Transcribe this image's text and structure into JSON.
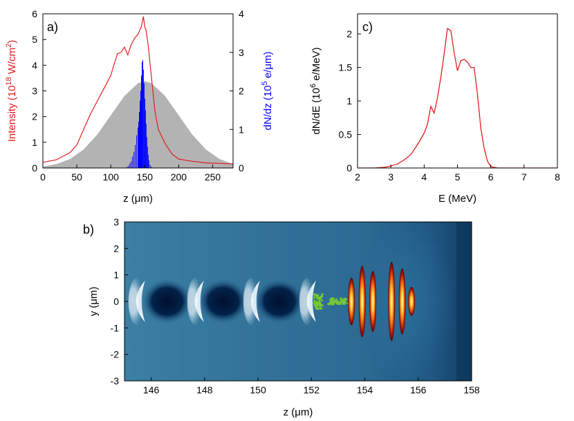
{
  "chart_data": [
    {
      "panel_label": "a)",
      "type": "line",
      "xlabel": "z (μm)",
      "ylabel_left": "Intensity (10^18 W/cm^2)",
      "ylabel_right": "dN/dz (10^5 e/μm)",
      "xlim": [
        0,
        280
      ],
      "ylim_left": [
        0,
        6
      ],
      "ylim_right": [
        0,
        4
      ],
      "xticks": [
        "0",
        "50",
        "100",
        "150",
        "200",
        "250"
      ],
      "yticks_left": [
        "0",
        "1",
        "2",
        "3",
        "4",
        "5",
        "6"
      ],
      "yticks_right": [
        "0",
        "1",
        "2",
        "3",
        "4"
      ],
      "colors": {
        "intensity": "#e31a1c",
        "gaussian_fill": "#b3b3b3",
        "dNdz": "#0000ff"
      },
      "series": [
        {
          "role": "intensity",
          "axis": "left",
          "style": "line",
          "x": [
            0,
            20,
            40,
            50,
            60,
            70,
            80,
            90,
            100,
            105,
            110,
            115,
            120,
            125,
            130,
            135,
            140,
            145,
            148,
            150,
            152,
            155,
            160,
            165,
            170,
            180,
            190,
            200,
            210,
            220,
            240,
            260,
            280
          ],
          "y": [
            0.22,
            0.32,
            0.6,
            0.9,
            1.5,
            2.1,
            2.6,
            3.1,
            3.6,
            4.05,
            4.45,
            4.5,
            4.7,
            4.4,
            4.8,
            5.05,
            5.2,
            5.5,
            5.9,
            5.5,
            5.35,
            4.8,
            3.5,
            2.2,
            1.5,
            0.95,
            0.55,
            0.35,
            0.3,
            0.26,
            0.2,
            0.18,
            0.16
          ]
        },
        {
          "role": "gaussian_envelope",
          "axis": "left",
          "style": "area",
          "x": [
            0,
            20,
            40,
            60,
            80,
            100,
            120,
            140,
            150,
            160,
            180,
            200,
            220,
            240,
            260,
            280
          ],
          "y": [
            0.05,
            0.15,
            0.35,
            0.72,
            1.3,
            2.05,
            2.8,
            3.3,
            3.38,
            3.3,
            2.8,
            2.05,
            1.3,
            0.72,
            0.35,
            0.15
          ]
        },
        {
          "role": "dNdz",
          "axis": "right",
          "style": "bars",
          "x": [
            124,
            126,
            128,
            130,
            132,
            134,
            136,
            138,
            140,
            141,
            142,
            143,
            144,
            145,
            146,
            147,
            148,
            149,
            150,
            151,
            152,
            153,
            154,
            155,
            156,
            158,
            160
          ],
          "y": [
            0.03,
            0.06,
            0.12,
            0.18,
            0.3,
            0.42,
            0.6,
            0.85,
            1.05,
            1.2,
            1.45,
            1.75,
            2.0,
            2.4,
            2.75,
            2.8,
            2.55,
            2.2,
            1.8,
            1.5,
            1.15,
            0.8,
            0.55,
            0.35,
            0.2,
            0.08,
            0.03
          ]
        }
      ]
    },
    {
      "panel_label": "c)",
      "type": "line",
      "xlabel": "E (MeV)",
      "ylabel": "dN/dE (10^6 e/MeV)",
      "xlim": [
        2,
        8
      ],
      "ylim": [
        0,
        2.3
      ],
      "xticks": [
        "2",
        "3",
        "4",
        "5",
        "6",
        "7",
        "8"
      ],
      "yticks": [
        "0",
        "0.5",
        "1",
        "1.5",
        "2"
      ],
      "series": [
        {
          "style": "line",
          "color": "#e31a1c",
          "x": [
            2.0,
            2.5,
            2.8,
            3.0,
            3.2,
            3.4,
            3.6,
            3.8,
            4.0,
            4.1,
            4.2,
            4.3,
            4.4,
            4.5,
            4.6,
            4.7,
            4.8,
            4.9,
            5.0,
            5.1,
            5.2,
            5.3,
            5.4,
            5.5,
            5.6,
            5.7,
            5.8,
            5.9,
            6.0,
            6.2,
            6.5,
            7.0,
            8.0
          ],
          "y": [
            0.0,
            0.0,
            0.01,
            0.03,
            0.06,
            0.12,
            0.2,
            0.35,
            0.52,
            0.65,
            0.92,
            0.82,
            1.05,
            1.35,
            1.7,
            2.08,
            2.05,
            1.72,
            1.45,
            1.6,
            1.62,
            1.58,
            1.5,
            1.5,
            1.1,
            0.6,
            0.3,
            0.1,
            0.02,
            0.0,
            0.0,
            0.0,
            0.0
          ]
        }
      ]
    },
    {
      "panel_label": "b)",
      "type": "heatmap",
      "xlabel": "z (μm)",
      "ylabel": "y (μm)",
      "xlim": [
        145,
        158
      ],
      "ylim": [
        -3,
        3
      ],
      "xticks": [
        "146",
        "148",
        "150",
        "152",
        "154",
        "156",
        "158"
      ],
      "yticks": [
        "-3",
        "-2",
        "-1",
        "0",
        "1",
        "2",
        "3"
      ],
      "colors": {
        "background": "#2a6a92",
        "edge": "#4f8fb3",
        "dark_cavity": "#001436",
        "bright_shell": "#ffffff",
        "laser_hot": "#ffe88a",
        "laser_core": "#f28b1a",
        "laser_outer": "#7a0606",
        "electrons": "#77c935"
      },
      "wake_bubbles": [
        {
          "front_z": 145.2,
          "cavity_center_z": 146.6
        },
        {
          "front_z": 147.4,
          "cavity_center_z": 148.7
        },
        {
          "front_z": 149.5,
          "cavity_center_z": 150.8
        },
        {
          "front_z": 151.6,
          "cavity_center_z": null
        }
      ],
      "laser_lobes": [
        {
          "z": 153.5,
          "half_height": 0.9
        },
        {
          "z": 153.9,
          "half_height": 1.35
        },
        {
          "z": 154.3,
          "half_height": 1.15
        },
        {
          "z": 155.0,
          "half_height": 1.5
        },
        {
          "z": 155.4,
          "half_height": 1.25
        },
        {
          "z": 155.75,
          "half_height": 0.55
        }
      ],
      "electron_bunch": {
        "z_start": 152.1,
        "z_end": 153.6,
        "y_center": 0.0
      }
    }
  ]
}
